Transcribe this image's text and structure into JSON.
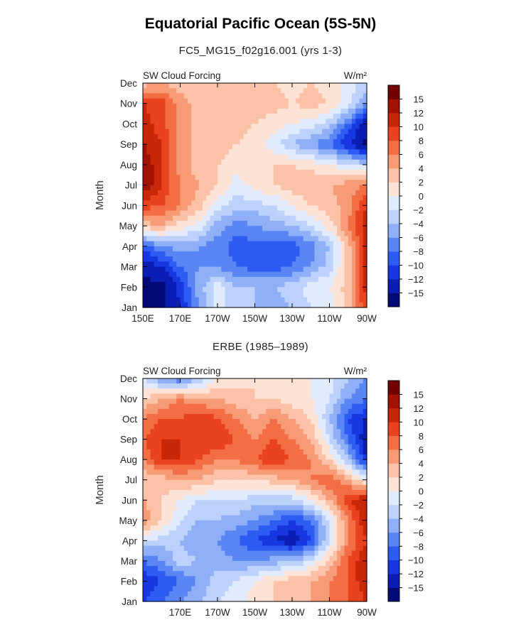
{
  "title": "Equatorial Pacific Ocean (5S-5N)",
  "colorscale": {
    "colors": [
      "#020a78",
      "#0a1eb4",
      "#1738e0",
      "#2e5cf2",
      "#5a86f5",
      "#8fb0f7",
      "#bdd2fa",
      "#e1ebfd",
      "#fde3d6",
      "#fbc2a8",
      "#f79a76",
      "#f36d45",
      "#e8431e",
      "#c92709",
      "#a11203",
      "#730000"
    ],
    "labels": [
      "15",
      "12",
      "10",
      "8",
      "6",
      "4",
      "2",
      "0",
      "−2",
      "−4",
      "−6",
      "−8",
      "−10",
      "−12",
      "−15"
    ]
  },
  "chart_data": [
    {
      "type": "heatmap",
      "title": "FC5_MG15_f02g16.001 (yrs 1-3)",
      "left_label": "SW Cloud Forcing",
      "right_label": "W/m²",
      "xlabel": "",
      "ylabel": "Month",
      "x_ticks": [
        "150E",
        "170E",
        "170W",
        "150W",
        "130W",
        "110W",
        "90W"
      ],
      "y_ticks": [
        "Jan",
        "Feb",
        "Mar",
        "Apr",
        "May",
        "Jun",
        "Jul",
        "Aug",
        "Sep",
        "Oct",
        "Nov",
        "Dec"
      ],
      "x_range_deg_east": [
        150,
        270
      ],
      "units": "W/m²",
      "longitudes": [
        "150E",
        "160E",
        "170E",
        "180",
        "170W",
        "160W",
        "150W",
        "140W",
        "130W",
        "120W",
        "110W",
        "100W",
        "90W"
      ],
      "values": [
        [
          -16,
          -16,
          -12,
          -6,
          -1,
          -4,
          -4,
          -5,
          -4,
          -2,
          -1,
          3,
          10
        ],
        [
          -16,
          -16,
          -11,
          -5,
          -1,
          -4,
          -4,
          -4,
          -3,
          -1,
          0,
          3,
          11
        ],
        [
          -14,
          -12,
          -8,
          -6,
          -6,
          -8,
          -9,
          -9,
          -8,
          -6,
          -3,
          3,
          11
        ],
        [
          -9,
          -6,
          -5,
          -6,
          -7,
          -9,
          -9,
          -9,
          -9,
          -7,
          -4,
          3,
          11
        ],
        [
          3,
          4,
          1,
          -1,
          -5,
          -7,
          -6,
          -5,
          -4,
          -2,
          1,
          6,
          12
        ],
        [
          9,
          8,
          6,
          3,
          -1,
          -3,
          -3,
          -2,
          0,
          2,
          3,
          5,
          10
        ],
        [
          14,
          10,
          6,
          4,
          2,
          -1,
          1,
          2,
          3,
          4,
          4,
          5,
          6
        ],
        [
          14,
          10,
          5,
          3,
          2,
          1,
          2,
          2,
          2,
          1,
          0,
          -2,
          -3
        ],
        [
          12,
          10,
          5,
          3,
          3,
          2,
          1,
          -1,
          -4,
          -6,
          -8,
          -12,
          -16
        ],
        [
          11,
          9,
          5,
          3,
          3,
          3,
          2,
          1,
          0,
          -1,
          -3,
          -8,
          -14
        ],
        [
          10,
          9,
          5,
          3,
          4,
          4,
          3,
          3,
          2,
          3,
          2,
          -1,
          -6
        ],
        [
          3,
          4,
          3,
          2,
          2,
          3,
          2,
          2,
          1,
          2,
          1,
          -1,
          -3
        ]
      ]
    },
    {
      "type": "heatmap",
      "title": "ERBE (1985–1989)",
      "left_label": "SW Cloud Forcing",
      "right_label": "W/m²",
      "xlabel": "",
      "ylabel": "Month",
      "x_ticks": [
        "170E",
        "170W",
        "150W",
        "130W",
        "110W",
        "90W"
      ],
      "y_ticks": [
        "Jan",
        "Feb",
        "Mar",
        "Apr",
        "May",
        "Jun",
        "Jul",
        "Aug",
        "Sep",
        "Oct",
        "Nov",
        "Dec"
      ],
      "x_range_deg_east": [
        150,
        270
      ],
      "units": "W/m²",
      "longitudes": [
        "150E",
        "160E",
        "170E",
        "180",
        "170W",
        "160W",
        "150W",
        "140W",
        "130W",
        "120W",
        "110W",
        "100W",
        "90W"
      ],
      "values": [
        [
          -10,
          -8,
          -6,
          -4,
          -2,
          -1,
          1,
          2,
          3,
          4,
          6,
          8,
          10
        ],
        [
          -12,
          -10,
          -8,
          -6,
          -3,
          -2,
          0,
          2,
          3,
          4,
          6,
          8,
          12
        ],
        [
          -8,
          -6,
          -3,
          -4,
          -5,
          -6,
          -6,
          -5,
          -4,
          -2,
          3,
          8,
          12
        ],
        [
          -2,
          -3,
          -4,
          -6,
          -6,
          -8,
          -10,
          -12,
          -14,
          -10,
          -2,
          6,
          10
        ],
        [
          6,
          2,
          -2,
          -4,
          -4,
          -5,
          -6,
          -8,
          -10,
          -8,
          -2,
          6,
          12
        ],
        [
          4,
          2,
          0,
          -2,
          -2,
          -2,
          -3,
          -3,
          -3,
          0,
          4,
          10,
          12
        ],
        [
          2,
          3,
          4,
          4,
          2,
          2,
          2,
          3,
          4,
          6,
          8,
          4,
          0
        ],
        [
          6,
          10,
          10,
          8,
          6,
          6,
          8,
          10,
          8,
          6,
          2,
          -4,
          -12
        ],
        [
          8,
          10,
          10,
          10,
          10,
          8,
          6,
          8,
          6,
          4,
          -2,
          -8,
          -14
        ],
        [
          6,
          8,
          8,
          10,
          8,
          6,
          4,
          6,
          4,
          2,
          -4,
          -10,
          -12
        ],
        [
          2,
          4,
          6,
          4,
          4,
          3,
          2,
          2,
          1,
          0,
          -2,
          -6,
          -8
        ],
        [
          -2,
          -6,
          -8,
          -4,
          0,
          1,
          2,
          1,
          0,
          0,
          -1,
          -4,
          -6
        ]
      ]
    }
  ]
}
